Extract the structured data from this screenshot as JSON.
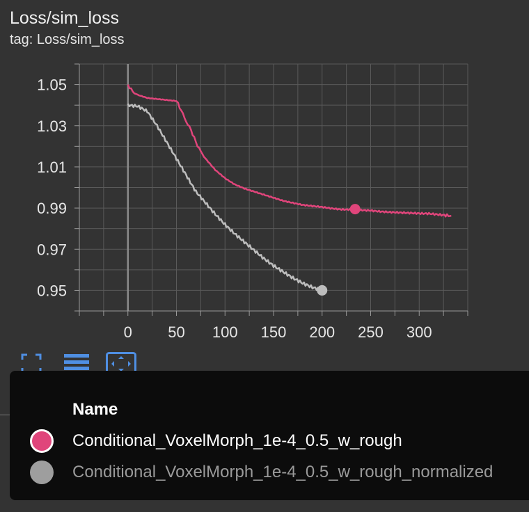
{
  "card": {
    "title": "Loss/sim_loss",
    "tag": "tag: Loss/sim_loss"
  },
  "chart_data": {
    "type": "line",
    "title": "Loss/sim_loss",
    "xlabel": "",
    "ylabel": "",
    "xlim": [
      -50,
      350
    ],
    "ylim": [
      0.94,
      1.06
    ],
    "x_ticks": [
      0,
      50,
      100,
      150,
      200,
      250,
      300
    ],
    "y_ticks": [
      0.95,
      0.97,
      0.99,
      1.01,
      1.03,
      1.05
    ],
    "y_tick_labels": [
      "0.95",
      "0.97",
      "0.99",
      "1.01",
      "1.03",
      "1.05"
    ],
    "grid": true,
    "series": [
      {
        "name": "Conditional_VoxelMorph_1e-4_0.5_w_rough",
        "color": "#e0457b",
        "x": [
          0,
          5,
          10,
          20,
          30,
          40,
          50,
          55,
          60,
          65,
          70,
          75,
          80,
          90,
          100,
          110,
          120,
          130,
          140,
          150,
          160,
          170,
          180,
          190,
          200,
          210,
          220,
          230,
          240,
          250,
          260,
          270,
          280,
          290,
          300,
          310,
          320,
          333
        ],
        "y": [
          1.05,
          1.0465,
          1.045,
          1.0435,
          1.043,
          1.0425,
          1.042,
          1.0375,
          1.032,
          1.028,
          1.022,
          1.0175,
          1.014,
          1.0085,
          1.0045,
          1.0015,
          0.9995,
          0.998,
          0.9965,
          0.995,
          0.9935,
          0.9925,
          0.9915,
          0.991,
          0.9905,
          0.9898,
          0.9893,
          0.9893,
          0.989,
          0.9888,
          0.9883,
          0.988,
          0.9878,
          0.9876,
          0.9874,
          0.9873,
          0.9868,
          0.9862
        ],
        "marker": {
          "x": 234,
          "y": 0.9895
        }
      },
      {
        "name": "Conditional_VoxelMorph_1e-4_0.5_w_rough_normalized",
        "color": "#bdbdbd",
        "x": [
          0,
          10,
          20,
          30,
          40,
          50,
          60,
          70,
          80,
          90,
          100,
          110,
          120,
          130,
          140,
          150,
          160,
          170,
          180,
          190,
          200
        ],
        "y": [
          1.04,
          1.0395,
          1.037,
          1.03,
          1.022,
          1.014,
          1.006,
          0.998,
          0.9925,
          0.987,
          0.982,
          0.9775,
          0.9735,
          0.9695,
          0.9655,
          0.962,
          0.959,
          0.956,
          0.9535,
          0.9515,
          0.95
        ],
        "marker": {
          "x": 200,
          "y": 0.95
        }
      }
    ]
  },
  "toolbar": {
    "icons": [
      "fit-domain-icon",
      "data-table-icon",
      "expand-icon"
    ]
  },
  "tooltip": {
    "header": "Name",
    "rows": [
      {
        "name": "Conditional_VoxelMorph_1e-4_0.5_w_rough",
        "color": "#e0457b"
      },
      {
        "name": "Conditional_VoxelMorph_1e-4_0.5_w_rough_normalized",
        "color": "#9e9e9e"
      }
    ]
  }
}
